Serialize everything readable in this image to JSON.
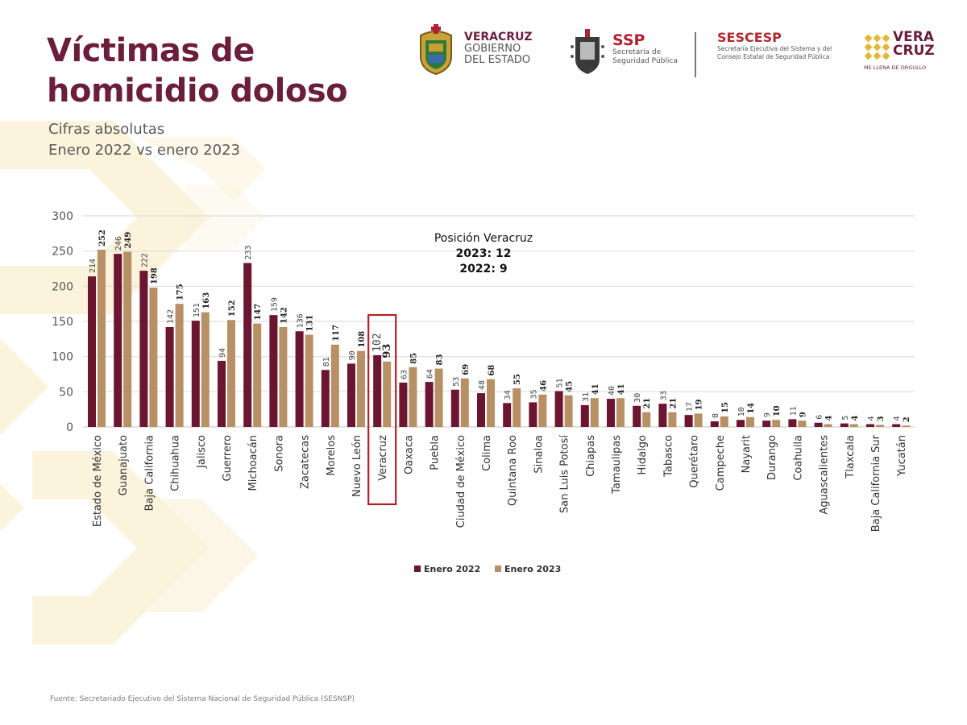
{
  "header": {
    "title_line1": "Víctimas de",
    "title_line2": "homicidio doloso",
    "subtitle_line1": "Cifras absolutas",
    "subtitle_line2": "Enero 2022 vs enero 2023"
  },
  "logos": {
    "veracruz_gov": {
      "line1": "VERACRUZ",
      "line2": "GOBIERNO",
      "line3": "DEL ESTADO"
    },
    "ssp": {
      "acronym": "SSP",
      "line1": "Secretaría de",
      "line2": "Seguridad Pública"
    },
    "sescesp": {
      "acronym": "SESCESP",
      "line1": "Secretaría Ejecutiva del Sistema y del",
      "line2": "Consejo Estatal de Seguridad Pública"
    },
    "veracruz_brand": {
      "line1": "VERA",
      "line2": "CRUZ",
      "tagline": "ME LLENA DE ORGULLO"
    }
  },
  "colors": {
    "primary": "#6b1e3a",
    "series_2022": "#6b1530",
    "series_2023": "#b89066",
    "highlight_box": "#b0202a",
    "background_deco": "#fbf3dc"
  },
  "chart_data": {
    "type": "bar",
    "title": "Víctimas de homicidio doloso",
    "xlabel": "",
    "ylabel": "",
    "ylim": [
      0,
      300
    ],
    "yticks": [
      0,
      50,
      100,
      150,
      200,
      250,
      300
    ],
    "grid": true,
    "legend_position": "bottom",
    "categories": [
      "Estado de México",
      "Guanajuato",
      "Baja California",
      "Chihuahua",
      "Jalisco",
      "Guerrero",
      "Michoacán",
      "Sonora",
      "Zacatecas",
      "Morelos",
      "Nuevo León",
      "Veracruz",
      "Oaxaca",
      "Puebla",
      "Ciudad de México",
      "Colima",
      "Quintana Roo",
      "Sinaloa",
      "San Luis Potosí",
      "Chiapas",
      "Tamaulipas",
      "Hidalgo",
      "Tabasco",
      "Querétaro",
      "Campeche",
      "Nayarit",
      "Durango",
      "Coahuila",
      "Aguascalientes",
      "Tlaxcala",
      "Baja California Sur",
      "Yucatán"
    ],
    "series": [
      {
        "name": "Enero 2022",
        "values": [
          214,
          246,
          222,
          142,
          151,
          94,
          233,
          159,
          136,
          81,
          90,
          102,
          63,
          64,
          53,
          48,
          34,
          35,
          51,
          31,
          40,
          30,
          33,
          17,
          8,
          10,
          9,
          11,
          6,
          5,
          4,
          4
        ]
      },
      {
        "name": "Enero 2023",
        "values": [
          252,
          249,
          198,
          175,
          163,
          152,
          147,
          142,
          131,
          117,
          108,
          93,
          85,
          83,
          69,
          68,
          55,
          46,
          45,
          41,
          41,
          21,
          21,
          19,
          15,
          14,
          10,
          9,
          4,
          4,
          3,
          2
        ]
      }
    ],
    "highlight_category": "Veracruz",
    "annotation": {
      "line1": "Posición Veracruz",
      "line2": "2023: 12",
      "line3": "2022: 9"
    }
  },
  "footer": {
    "source": "Fuente: Secretariado Ejecutivo del Sistema Nacional de Seguridad Pública (SESNSP)"
  }
}
